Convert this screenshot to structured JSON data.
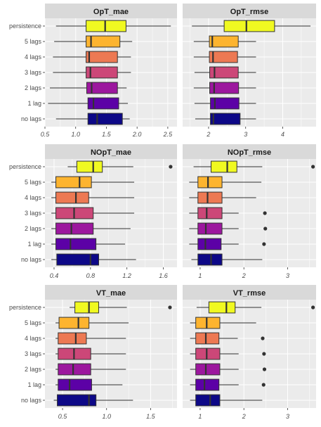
{
  "chart_data": {
    "type": "boxplot",
    "colors": {
      "no lags": "#0d0887",
      "1 lag": "#5c01a6",
      "2 lags": "#9c179e",
      "3 lags": "#cc4778",
      "4 lags": "#ed7953",
      "5 lags": "#fdb42f",
      "persistence": "#f0f921",
      "panel_bg": "#ebebeb",
      "strip_bg": "#d9d9d9",
      "grid": "#ffffff"
    },
    "categories": [
      "persistence",
      "5 lags",
      "4 lags",
      "3 lags",
      "2 lags",
      "1 lag",
      "no lags"
    ],
    "panels": [
      {
        "title": "OpT_mae",
        "xlim": [
          0.5,
          2.65
        ],
        "xticks": [
          0.5,
          1.0,
          1.5,
          2.0,
          2.5
        ],
        "xtick_labels": [
          "0.5",
          "1.0",
          "1.5",
          "2.0",
          "2.5"
        ],
        "boxes": [
          {
            "label": "persistence",
            "min": 0.68,
            "q1": 1.17,
            "median": 1.48,
            "q3": 1.82,
            "max": 2.55,
            "outliers": []
          },
          {
            "label": "5 lags",
            "min": 0.65,
            "q1": 1.17,
            "median": 1.25,
            "q3": 1.72,
            "max": 1.92,
            "outliers": []
          },
          {
            "label": "4 lags",
            "min": 0.63,
            "q1": 1.17,
            "median": 1.22,
            "q3": 1.68,
            "max": 1.9,
            "outliers": []
          },
          {
            "label": "3 lags",
            "min": 0.63,
            "q1": 1.17,
            "median": 1.24,
            "q3": 1.68,
            "max": 1.9,
            "outliers": []
          },
          {
            "label": "2 lags",
            "min": 0.58,
            "q1": 1.18,
            "median": 1.26,
            "q3": 1.68,
            "max": 1.83,
            "outliers": []
          },
          {
            "label": "1 lag",
            "min": 0.55,
            "q1": 1.2,
            "median": 1.29,
            "q3": 1.7,
            "max": 1.85,
            "outliers": []
          },
          {
            "label": "no lags",
            "min": 0.68,
            "q1": 1.2,
            "median": 1.35,
            "q3": 1.76,
            "max": 1.88,
            "outliers": []
          }
        ]
      },
      {
        "title": "OpT_rmse",
        "xlim": [
          1.3,
          4.9
        ],
        "xticks": [
          2,
          3,
          4
        ],
        "xtick_labels": [
          "2",
          "3",
          "4"
        ],
        "boxes": [
          {
            "label": "persistence",
            "min": 1.55,
            "q1": 2.42,
            "median": 3.02,
            "q3": 3.78,
            "max": 4.75,
            "outliers": []
          },
          {
            "label": "5 lags",
            "min": 1.6,
            "q1": 2.02,
            "median": 2.1,
            "q3": 2.8,
            "max": 3.28,
            "outliers": []
          },
          {
            "label": "4 lags",
            "min": 1.6,
            "q1": 2.02,
            "median": 2.12,
            "q3": 2.78,
            "max": 3.28,
            "outliers": []
          },
          {
            "label": "3 lags",
            "min": 1.62,
            "q1": 2.03,
            "median": 2.16,
            "q3": 2.8,
            "max": 3.28,
            "outliers": []
          },
          {
            "label": "2 lags",
            "min": 1.6,
            "q1": 2.03,
            "median": 2.15,
            "q3": 2.81,
            "max": 3.28,
            "outliers": []
          },
          {
            "label": "1 lag",
            "min": 1.62,
            "q1": 2.05,
            "median": 2.17,
            "q3": 2.82,
            "max": 3.28,
            "outliers": []
          },
          {
            "label": "no lags",
            "min": 1.64,
            "q1": 2.05,
            "median": 2.13,
            "q3": 2.85,
            "max": 3.28,
            "outliers": []
          }
        ]
      },
      {
        "title": "NOpT_mae",
        "xlim": [
          0.3,
          1.75
        ],
        "xticks": [
          0.4,
          0.8,
          1.2,
          1.6
        ],
        "xtick_labels": [
          "0.4",
          "0.8",
          "1.2",
          "1.6"
        ],
        "boxes": [
          {
            "label": "persistence",
            "min": 0.55,
            "q1": 0.65,
            "median": 0.83,
            "q3": 0.93,
            "max": 1.27,
            "outliers": [
              1.68
            ]
          },
          {
            "label": "5 lags",
            "min": 0.37,
            "q1": 0.42,
            "median": 0.68,
            "q3": 0.81,
            "max": 1.28,
            "outliers": []
          },
          {
            "label": "4 lags",
            "min": 0.37,
            "q1": 0.42,
            "median": 0.64,
            "q3": 0.78,
            "max": 1.28,
            "outliers": []
          },
          {
            "label": "3 lags",
            "min": 0.37,
            "q1": 0.42,
            "median": 0.62,
            "q3": 0.83,
            "max": 1.28,
            "outliers": []
          },
          {
            "label": "2 lags",
            "min": 0.37,
            "q1": 0.42,
            "median": 0.59,
            "q3": 0.83,
            "max": 1.24,
            "outliers": []
          },
          {
            "label": "1 lag",
            "min": 0.37,
            "q1": 0.42,
            "median": 0.58,
            "q3": 0.86,
            "max": 1.18,
            "outliers": []
          },
          {
            "label": "no lags",
            "min": 0.37,
            "q1": 0.43,
            "median": 0.8,
            "q3": 0.89,
            "max": 1.3,
            "outliers": []
          }
        ]
      },
      {
        "title": "NOpT_rmse",
        "xlim": [
          0.6,
          3.65
        ],
        "xticks": [
          1,
          2,
          3
        ],
        "xtick_labels": [
          "1",
          "2",
          "3"
        ],
        "boxes": [
          {
            "label": "persistence",
            "min": 0.85,
            "q1": 1.25,
            "median": 1.62,
            "q3": 1.84,
            "max": 2.42,
            "outliers": [
              3.58
            ]
          },
          {
            "label": "5 lags",
            "min": 0.75,
            "q1": 0.95,
            "median": 1.18,
            "q3": 1.5,
            "max": 2.4,
            "outliers": []
          },
          {
            "label": "4 lags",
            "min": 0.75,
            "q1": 0.95,
            "median": 1.17,
            "q3": 1.5,
            "max": 2.28,
            "outliers": []
          },
          {
            "label": "3 lags",
            "min": 0.75,
            "q1": 0.95,
            "median": 1.15,
            "q3": 1.5,
            "max": 1.88,
            "outliers": [
              2.48
            ]
          },
          {
            "label": "2 lags",
            "min": 0.75,
            "q1": 0.95,
            "median": 1.13,
            "q3": 1.5,
            "max": 1.88,
            "outliers": [
              2.49
            ]
          },
          {
            "label": "1 lag",
            "min": 0.75,
            "q1": 0.95,
            "median": 1.12,
            "q3": 1.48,
            "max": 1.88,
            "outliers": [
              2.46
            ]
          },
          {
            "label": "no lags",
            "min": 0.8,
            "q1": 0.95,
            "median": 1.25,
            "q3": 1.5,
            "max": 2.42,
            "outliers": []
          }
        ]
      },
      {
        "title": "VT_mae",
        "xlim": [
          0.3,
          1.8
        ],
        "xticks": [
          0.5,
          1.0,
          1.5
        ],
        "xtick_labels": [
          "0.5",
          "1.0",
          "1.5"
        ],
        "boxes": [
          {
            "label": "persistence",
            "min": 0.58,
            "q1": 0.64,
            "median": 0.8,
            "q3": 0.91,
            "max": 1.23,
            "outliers": [
              1.72
            ]
          },
          {
            "label": "5 lags",
            "min": 0.42,
            "q1": 0.46,
            "median": 0.68,
            "q3": 0.8,
            "max": 1.25,
            "outliers": []
          },
          {
            "label": "4 lags",
            "min": 0.42,
            "q1": 0.45,
            "median": 0.65,
            "q3": 0.77,
            "max": 1.22,
            "outliers": []
          },
          {
            "label": "3 lags",
            "min": 0.42,
            "q1": 0.45,
            "median": 0.63,
            "q3": 0.82,
            "max": 1.22,
            "outliers": []
          },
          {
            "label": "2 lags",
            "min": 0.42,
            "q1": 0.45,
            "median": 0.62,
            "q3": 0.82,
            "max": 1.22,
            "outliers": []
          },
          {
            "label": "1 lag",
            "min": 0.42,
            "q1": 0.45,
            "median": 0.58,
            "q3": 0.83,
            "max": 1.18,
            "outliers": []
          },
          {
            "label": "no lags",
            "min": 0.4,
            "q1": 0.44,
            "median": 0.8,
            "q3": 0.88,
            "max": 1.3,
            "outliers": []
          }
        ]
      },
      {
        "title": "VT_rmse",
        "xlim": [
          0.6,
          3.65
        ],
        "xticks": [
          1,
          2,
          3
        ],
        "xtick_labels": [
          "1",
          "2",
          "3"
        ],
        "boxes": [
          {
            "label": "persistence",
            "min": 0.92,
            "q1": 1.2,
            "median": 1.6,
            "q3": 1.8,
            "max": 2.4,
            "outliers": [
              3.58
            ]
          },
          {
            "label": "5 lags",
            "min": 0.77,
            "q1": 0.9,
            "median": 1.15,
            "q3": 1.45,
            "max": 2.28,
            "outliers": []
          },
          {
            "label": "4 lags",
            "min": 0.77,
            "q1": 0.9,
            "median": 1.13,
            "q3": 1.43,
            "max": 1.86,
            "outliers": [
              2.43
            ]
          },
          {
            "label": "3 lags",
            "min": 0.77,
            "q1": 0.9,
            "median": 1.15,
            "q3": 1.45,
            "max": 1.88,
            "outliers": [
              2.46
            ]
          },
          {
            "label": "2 lags",
            "min": 0.77,
            "q1": 0.9,
            "median": 1.13,
            "q3": 1.45,
            "max": 1.88,
            "outliers": [
              2.47
            ]
          },
          {
            "label": "1 lag",
            "min": 0.77,
            "q1": 0.9,
            "median": 1.1,
            "q3": 1.43,
            "max": 1.88,
            "outliers": [
              2.45
            ]
          },
          {
            "label": "no lags",
            "min": 0.77,
            "q1": 0.9,
            "median": 1.23,
            "q3": 1.45,
            "max": 2.42,
            "outliers": []
          }
        ]
      }
    ]
  }
}
